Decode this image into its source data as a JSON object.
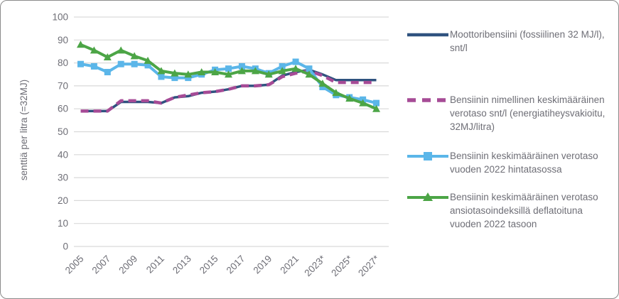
{
  "chart_data": {
    "type": "line",
    "title": "",
    "ylabel": "senttiä per litra (=32MJ)",
    "xlabel": "",
    "ylim": [
      0,
      100
    ],
    "ytick_step": 10,
    "ytick_labels": [
      "0",
      "10",
      "20",
      "30",
      "40",
      "50",
      "60",
      "70",
      "80",
      "90",
      "100"
    ],
    "grid": true,
    "legend_position": "right",
    "x_years": [
      2005,
      2006,
      2007,
      2008,
      2009,
      2010,
      2011,
      2012,
      2013,
      2014,
      2015,
      2016,
      2017,
      2018,
      2019,
      2020,
      2021,
      2022,
      2023,
      2024,
      2025,
      2026,
      2027
    ],
    "xtick_labels": [
      "2005",
      "2007",
      "2009",
      "2011",
      "2013",
      "2015",
      "2017",
      "2019",
      "2021",
      "2023*",
      "2025*",
      "2027*"
    ],
    "series": [
      {
        "name": "Moottoribensiini (fossiilinen 32 MJ/l), snt/l",
        "color": "#2F527F",
        "style": "solid",
        "marker": "none",
        "values": [
          59,
          59,
          59,
          63,
          63,
          63,
          62.5,
          65,
          65.5,
          67,
          67.5,
          68.5,
          70,
          70,
          70.5,
          74.5,
          76,
          77,
          75,
          72.5,
          72.5,
          72.5,
          72.5
        ]
      },
      {
        "name": "Bensiinin nimellinen keskimääräinen verotaso snt/l (energiatiheysvakioitu, 32MJ/litra)",
        "color": "#A64B96",
        "style": "dashed",
        "marker": "none",
        "values": [
          59,
          59,
          59,
          63.5,
          63.5,
          63.5,
          62.5,
          65,
          66,
          67,
          67.5,
          68.5,
          70,
          70,
          70.5,
          74,
          75.5,
          76.5,
          74.5,
          71.5,
          71.5,
          71.5,
          71.5
        ]
      },
      {
        "name": "Bensiinin keskimääräinen verotaso vuoden 2022 hintatasossa",
        "color": "#5BB6E9",
        "style": "solid",
        "marker": "square",
        "values": [
          79.5,
          78.5,
          76,
          79.5,
          79.5,
          79,
          74,
          73.5,
          73.5,
          75,
          77,
          77.5,
          78.5,
          77.5,
          75.5,
          78.5,
          80.5,
          77.5,
          69.5,
          66,
          65,
          64,
          62.5
        ]
      },
      {
        "name": "Bensiinin keskimääräinen verotaso ansiotasoindeksillä deflatoituna vuoden 2022 tasoon",
        "color": "#4CA546",
        "style": "solid",
        "marker": "triangle",
        "values": [
          88,
          85.5,
          82.5,
          85.5,
          83,
          81,
          76.5,
          75.5,
          75,
          76,
          76,
          75,
          76.5,
          76.5,
          75,
          76.5,
          77.5,
          75,
          71,
          67,
          64.5,
          62.5,
          60
        ]
      }
    ],
    "colors": {
      "grid": "#D9D9D9",
      "text": "#6E6E76"
    }
  }
}
